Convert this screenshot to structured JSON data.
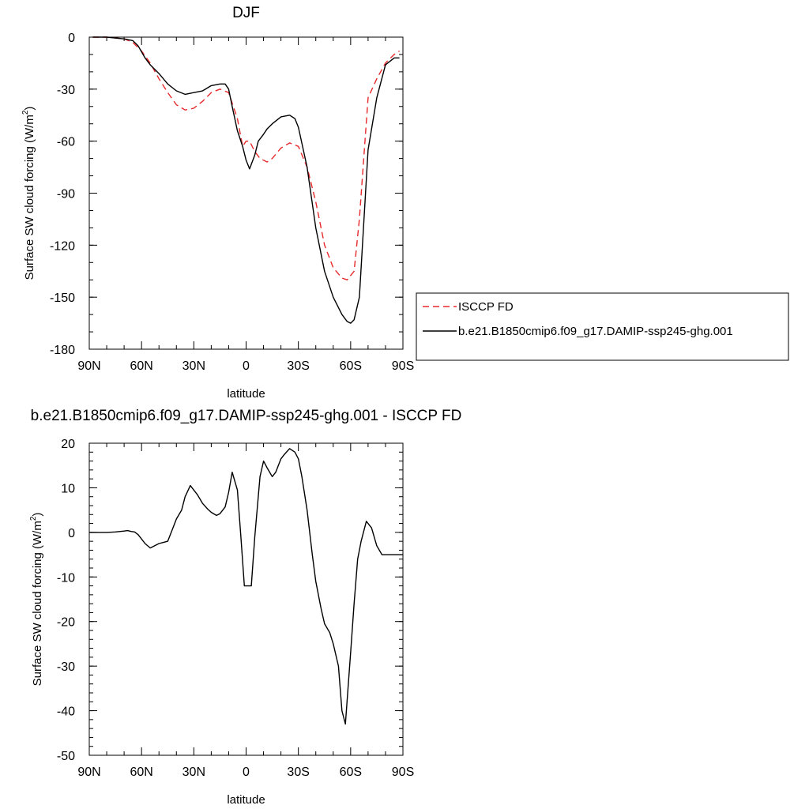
{
  "chart_data": [
    {
      "type": "line",
      "title": "DJF",
      "xlabel": "latitude",
      "ylabel": "Surface SW cloud forcing (W/m",
      "ylabel_sup": "2",
      "ylabel_tail": ")",
      "xlim": [
        90,
        -90
      ],
      "ylim": [
        -180,
        0
      ],
      "xticks": [
        90,
        60,
        30,
        0,
        -30,
        -60,
        -90
      ],
      "xtick_labels": [
        "90N",
        "60N",
        "30N",
        "0",
        "30S",
        "60S",
        "90S"
      ],
      "yticks": [
        0,
        -30,
        -60,
        -90,
        -120,
        -150,
        -180
      ],
      "ytick_labels": [
        "0",
        "-30",
        "-60",
        "-90",
        "-120",
        "-150",
        "-180"
      ],
      "grid": false,
      "legend": {
        "placement": "right"
      },
      "series": [
        {
          "name": "ISCCP FD",
          "color": "#e8292b",
          "dash": "dashed",
          "x": [
            88,
            80,
            70,
            65,
            60,
            55,
            50,
            45,
            40,
            35,
            30,
            25,
            20,
            15,
            10,
            5,
            2,
            0,
            -2,
            -5,
            -8,
            -12,
            -15,
            -20,
            -25,
            -30,
            -35,
            -40,
            -45,
            -50,
            -55,
            -58,
            -62,
            -65,
            -70,
            -75,
            -80,
            -85,
            -88
          ],
          "y": [
            0,
            0,
            -1,
            -3,
            -8,
            -15,
            -24,
            -32,
            -39,
            -42,
            -41,
            -37,
            -32,
            -30,
            -32,
            -47,
            -63,
            -60,
            -60,
            -66,
            -70,
            -72,
            -70,
            -64,
            -61,
            -63,
            -75,
            -95,
            -120,
            -133,
            -139,
            -140,
            -135,
            -105,
            -35,
            -24,
            -15,
            -10,
            -8
          ]
        },
        {
          "name": "b.e21.B1850cmip6.f09_g17.DAMIP-ssp245-ghg.001",
          "color": "#000000",
          "dash": "solid",
          "x": [
            88,
            80,
            70,
            65,
            62,
            58,
            55,
            50,
            45,
            40,
            35,
            30,
            25,
            20,
            15,
            12,
            10,
            8,
            5,
            2,
            0,
            -2,
            -5,
            -7,
            -10,
            -12,
            -15,
            -20,
            -25,
            -28,
            -30,
            -35,
            -40,
            -45,
            -50,
            -55,
            -58,
            -60,
            -62,
            -65,
            -70,
            -75,
            -80,
            -85,
            -88
          ],
          "y": [
            0,
            0,
            -1,
            -2,
            -5,
            -12,
            -16,
            -21,
            -27,
            -31,
            -33,
            -32,
            -31,
            -28,
            -27,
            -27,
            -30,
            -40,
            -54,
            -63,
            -71,
            -76,
            -68,
            -60,
            -56,
            -53,
            -50,
            -46,
            -45,
            -47,
            -52,
            -75,
            -110,
            -135,
            -150,
            -160,
            -164,
            -165,
            -163,
            -150,
            -65,
            -35,
            -16,
            -12,
            -12
          ]
        }
      ]
    },
    {
      "type": "line",
      "title": "b.e21.B1850cmip6.f09_g17.DAMIP-ssp245-ghg.001 - ISCCP FD",
      "xlabel": "latitude",
      "ylabel": "Surface SW cloud forcing (W/m",
      "ylabel_sup": "2",
      "ylabel_tail": ")",
      "xlim": [
        90,
        -90
      ],
      "ylim": [
        -50,
        20
      ],
      "xticks": [
        90,
        60,
        30,
        0,
        -30,
        -60,
        -90
      ],
      "xtick_labels": [
        "90N",
        "60N",
        "30N",
        "0",
        "30S",
        "60S",
        "90S"
      ],
      "yticks": [
        20,
        10,
        0,
        -10,
        -20,
        -30,
        -40,
        -50
      ],
      "ytick_labels": [
        "20",
        "10",
        "0",
        "-10",
        "-20",
        "-30",
        "-40",
        "-50"
      ],
      "grid": false,
      "series": [
        {
          "color": "#000000",
          "dash": "solid",
          "x": [
            90,
            85,
            80,
            75,
            70,
            68,
            66,
            64,
            62,
            60,
            58,
            55,
            50,
            47,
            45,
            42,
            40,
            37,
            35,
            32,
            30,
            28,
            25,
            22,
            20,
            17,
            15,
            12,
            10,
            8,
            5,
            3,
            1,
            -1,
            -3,
            -5,
            -8,
            -10,
            -12,
            -15,
            -17,
            -20,
            -22,
            -25,
            -28,
            -30,
            -32,
            -35,
            -38,
            -40,
            -43,
            -45,
            -48,
            -50,
            -53,
            -55,
            -57,
            -60,
            -62,
            -64,
            -66,
            -69,
            -72,
            -75,
            -78,
            -81,
            -84,
            -87,
            -90
          ],
          "y": [
            0,
            0,
            0,
            0.1,
            0.3,
            0.4,
            0.2,
            0.1,
            -0.5,
            -1.5,
            -2.5,
            -3.5,
            -2.5,
            -2.2,
            -2,
            1,
            3,
            5,
            8,
            10.5,
            9.5,
            8.5,
            6.5,
            5.2,
            4.5,
            3.8,
            4.2,
            5.7,
            9,
            13.5,
            9.5,
            -1,
            -12,
            -12,
            -12,
            -1,
            12.5,
            16,
            14.5,
            12.5,
            13.5,
            16.5,
            17.5,
            18.8,
            18,
            16.5,
            12.5,
            5,
            -5,
            -11,
            -17,
            -20.5,
            -22.5,
            -25,
            -30,
            -40,
            -43,
            -27,
            -16,
            -6,
            -2,
            2.5,
            1,
            -3,
            -5,
            -5,
            -5,
            -5,
            -5
          ]
        }
      ]
    }
  ]
}
